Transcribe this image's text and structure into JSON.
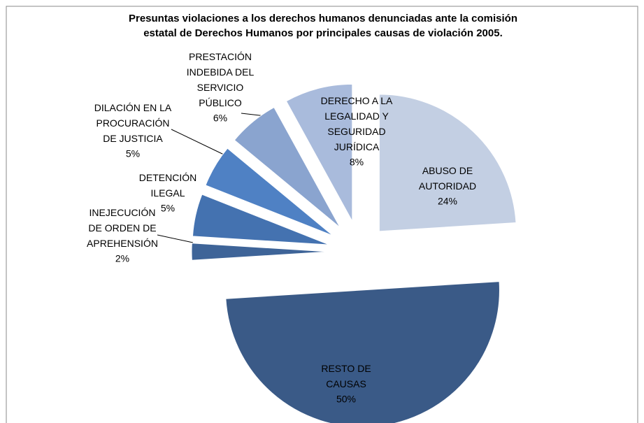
{
  "chart_data": {
    "type": "pie",
    "title": "Presuntas violaciones a los derechos humanos denunciadas ante la comisión\nestatal de Derechos Humanos por principales causas de violación 2005.",
    "categories": [
      "ABUSO DE\nAUTORIDAD",
      "RESTO DE\nCAUSAS",
      "INEJECUCIÓN\nDE ORDEN DE\nAPREHENSIÓN",
      "DETENCIÓN\nILEGAL",
      "DILACIÓN EN LA\nPROCURACIÓN\nDE JUSTICIA",
      "PRESTACIÓN\nINDEBIDA DEL\nSERVICIO\nPÚBLICO",
      "DERECHO A LA\nLEGALIDAD Y\nSEGURIDAD\nJURÍDICA"
    ],
    "values": [
      24,
      50,
      2,
      5,
      5,
      6,
      8
    ],
    "value_labels": [
      "24%",
      "50%",
      "2%",
      "5%",
      "5%",
      "6%",
      "8%"
    ],
    "colors": [
      "#c3cfe3",
      "#3a5a87",
      "#3e6498",
      "#4472b0",
      "#4f81c4",
      "#8aa4cf",
      "#a9bbdc"
    ]
  }
}
